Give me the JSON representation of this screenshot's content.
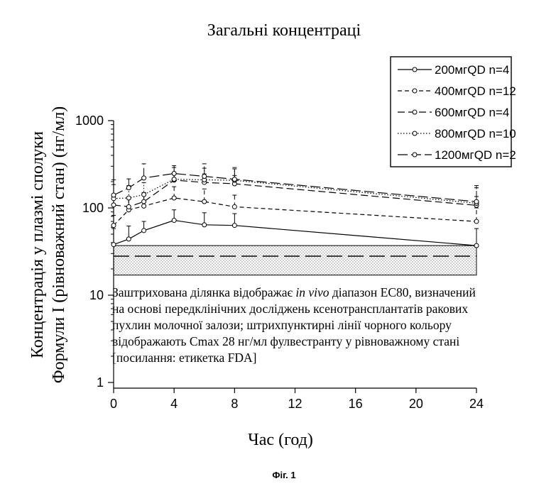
{
  "chart_data": {
    "type": "line",
    "title": "Загальні концентраці",
    "ylabel_lines": [
      "Концентрація у плазмі сполуки",
      "Формули I (рівноважний стан) (нг/мл)"
    ],
    "xlabel": "Час (год)",
    "y_scale": "log",
    "ylim": [
      1,
      1000
    ],
    "xlim": [
      0,
      24
    ],
    "x_ticks": [
      0,
      4,
      8,
      12,
      16,
      20,
      24
    ],
    "y_ticks": [
      {
        "value": 1,
        "label": "1"
      },
      {
        "value": 10,
        "label": "10"
      },
      {
        "value": 100,
        "label": "100"
      },
      {
        "value": 1000,
        "label": "1000"
      }
    ],
    "legend_position": "top-right",
    "series": [
      {
        "name": "200мгQD n=4",
        "dash": "solid",
        "points": [
          {
            "x": 0,
            "y": 38,
            "err": 58
          },
          {
            "x": 1,
            "y": 44,
            "err": 62
          },
          {
            "x": 2,
            "y": 55,
            "err": 70
          },
          {
            "x": 4,
            "y": 72,
            "err": 95
          },
          {
            "x": 6,
            "y": 64,
            "err": 88
          },
          {
            "x": 8,
            "y": 63,
            "err": 86
          },
          {
            "x": 24,
            "y": 37,
            "err": 58
          }
        ]
      },
      {
        "name": "400мгQD n=12",
        "dash": "short",
        "points": [
          {
            "x": 0,
            "y": 63,
            "err": 82
          },
          {
            "x": 1,
            "y": 95,
            "err": 130
          },
          {
            "x": 2,
            "y": 105,
            "err": 140
          },
          {
            "x": 4,
            "y": 130,
            "err": 175
          },
          {
            "x": 6,
            "y": 118,
            "err": 165
          },
          {
            "x": 8,
            "y": 103,
            "err": 140
          },
          {
            "x": 24,
            "y": 70,
            "err": 100
          }
        ]
      },
      {
        "name": "600мгQD n=4",
        "dash": "long",
        "points": [
          {
            "x": 0,
            "y": 108,
            "err": 135
          },
          {
            "x": 1,
            "y": 103,
            "err": 132
          },
          {
            "x": 2,
            "y": 118,
            "err": 150
          },
          {
            "x": 4,
            "y": 208,
            "err": 255
          },
          {
            "x": 6,
            "y": 196,
            "err": 245
          },
          {
            "x": 8,
            "y": 189,
            "err": 235
          },
          {
            "x": 24,
            "y": 107,
            "err": 135
          }
        ]
      },
      {
        "name": "800мгQD n=10",
        "dash": "dotted",
        "points": [
          {
            "x": 0,
            "y": 128,
            "err": 210
          },
          {
            "x": 1,
            "y": 130,
            "err": 180
          },
          {
            "x": 2,
            "y": 142,
            "err": 195
          },
          {
            "x": 4,
            "y": 213,
            "err": 290
          },
          {
            "x": 6,
            "y": 210,
            "err": 285
          },
          {
            "x": 8,
            "y": 207,
            "err": 280
          },
          {
            "x": 24,
            "y": 113,
            "err": 170
          }
        ]
      },
      {
        "name": "1200мгQD n=2",
        "dash": "longdash",
        "points": [
          {
            "x": 0,
            "y": 140,
            "err": 185
          },
          {
            "x": 1,
            "y": 170,
            "err": 215
          },
          {
            "x": 2,
            "y": 220,
            "err": 320
          },
          {
            "x": 4,
            "y": 248,
            "err": 305
          },
          {
            "x": 6,
            "y": 230,
            "err": 320
          },
          {
            "x": 8,
            "y": 213,
            "err": 290
          },
          {
            "x": 24,
            "y": 118,
            "err": 180
          }
        ]
      }
    ],
    "shaded_range": {
      "y_low": 17,
      "y_high": 37,
      "x_from": 0,
      "x_to": 24
    },
    "reference_line": {
      "y": 28
    },
    "annotation_lines": [
      [
        {
          "t": "Заштрихована ділянка відображає ",
          "i": false
        },
        {
          "t": "in vivo",
          "i": true
        },
        {
          "t": " діапазон ЕС80, визначений",
          "i": false
        }
      ],
      [
        {
          "t": "на основі передклінічних досліджень ксенотрансплантатів ракових",
          "i": false
        }
      ],
      [
        {
          "t": "пухлин молочної залози; штрихпунктирні лінії чорного кольору",
          "i": false
        }
      ],
      [
        {
          "t": "відображають Cmax 28 нг/мл фулвестранту у рівноважному стані",
          "i": false
        }
      ],
      [
        {
          "t": "[посилання: етикетка FDA]",
          "i": false
        }
      ]
    ]
  },
  "figure_caption": "Фіг. 1"
}
